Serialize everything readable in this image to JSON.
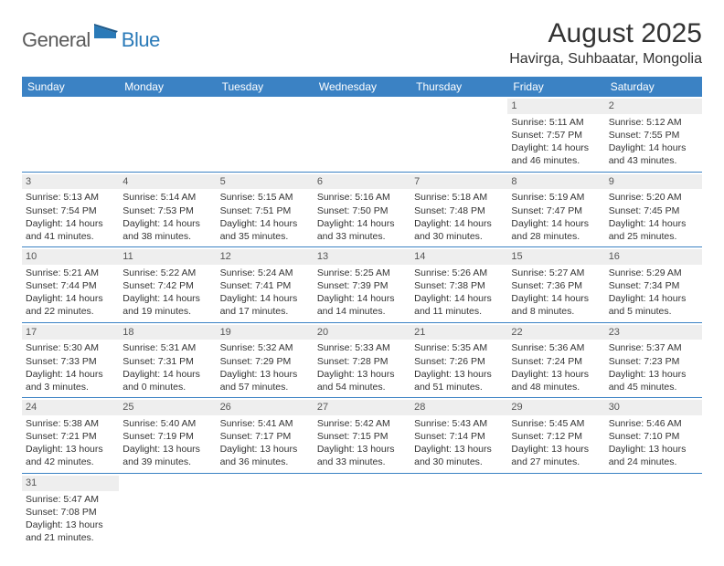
{
  "logo": {
    "general": "General",
    "blue": "Blue"
  },
  "title": "August 2025",
  "location": "Havirga, Suhbaatar, Mongolia",
  "colors": {
    "header_bg": "#3b82c4",
    "header_text": "#ffffff",
    "row_divider": "#3b82c4",
    "daynum_bg": "#eeeeee",
    "text": "#333333"
  },
  "day_names": [
    "Sunday",
    "Monday",
    "Tuesday",
    "Wednesday",
    "Thursday",
    "Friday",
    "Saturday"
  ],
  "weeks": [
    [
      null,
      null,
      null,
      null,
      null,
      {
        "n": "1",
        "sunrise": "5:11 AM",
        "sunset": "7:57 PM",
        "daylight": "14 hours and 46 minutes."
      },
      {
        "n": "2",
        "sunrise": "5:12 AM",
        "sunset": "7:55 PM",
        "daylight": "14 hours and 43 minutes."
      }
    ],
    [
      {
        "n": "3",
        "sunrise": "5:13 AM",
        "sunset": "7:54 PM",
        "daylight": "14 hours and 41 minutes."
      },
      {
        "n": "4",
        "sunrise": "5:14 AM",
        "sunset": "7:53 PM",
        "daylight": "14 hours and 38 minutes."
      },
      {
        "n": "5",
        "sunrise": "5:15 AM",
        "sunset": "7:51 PM",
        "daylight": "14 hours and 35 minutes."
      },
      {
        "n": "6",
        "sunrise": "5:16 AM",
        "sunset": "7:50 PM",
        "daylight": "14 hours and 33 minutes."
      },
      {
        "n": "7",
        "sunrise": "5:18 AM",
        "sunset": "7:48 PM",
        "daylight": "14 hours and 30 minutes."
      },
      {
        "n": "8",
        "sunrise": "5:19 AM",
        "sunset": "7:47 PM",
        "daylight": "14 hours and 28 minutes."
      },
      {
        "n": "9",
        "sunrise": "5:20 AM",
        "sunset": "7:45 PM",
        "daylight": "14 hours and 25 minutes."
      }
    ],
    [
      {
        "n": "10",
        "sunrise": "5:21 AM",
        "sunset": "7:44 PM",
        "daylight": "14 hours and 22 minutes."
      },
      {
        "n": "11",
        "sunrise": "5:22 AM",
        "sunset": "7:42 PM",
        "daylight": "14 hours and 19 minutes."
      },
      {
        "n": "12",
        "sunrise": "5:24 AM",
        "sunset": "7:41 PM",
        "daylight": "14 hours and 17 minutes."
      },
      {
        "n": "13",
        "sunrise": "5:25 AM",
        "sunset": "7:39 PM",
        "daylight": "14 hours and 14 minutes."
      },
      {
        "n": "14",
        "sunrise": "5:26 AM",
        "sunset": "7:38 PM",
        "daylight": "14 hours and 11 minutes."
      },
      {
        "n": "15",
        "sunrise": "5:27 AM",
        "sunset": "7:36 PM",
        "daylight": "14 hours and 8 minutes."
      },
      {
        "n": "16",
        "sunrise": "5:29 AM",
        "sunset": "7:34 PM",
        "daylight": "14 hours and 5 minutes."
      }
    ],
    [
      {
        "n": "17",
        "sunrise": "5:30 AM",
        "sunset": "7:33 PM",
        "daylight": "14 hours and 3 minutes."
      },
      {
        "n": "18",
        "sunrise": "5:31 AM",
        "sunset": "7:31 PM",
        "daylight": "14 hours and 0 minutes."
      },
      {
        "n": "19",
        "sunrise": "5:32 AM",
        "sunset": "7:29 PM",
        "daylight": "13 hours and 57 minutes."
      },
      {
        "n": "20",
        "sunrise": "5:33 AM",
        "sunset": "7:28 PM",
        "daylight": "13 hours and 54 minutes."
      },
      {
        "n": "21",
        "sunrise": "5:35 AM",
        "sunset": "7:26 PM",
        "daylight": "13 hours and 51 minutes."
      },
      {
        "n": "22",
        "sunrise": "5:36 AM",
        "sunset": "7:24 PM",
        "daylight": "13 hours and 48 minutes."
      },
      {
        "n": "23",
        "sunrise": "5:37 AM",
        "sunset": "7:23 PM",
        "daylight": "13 hours and 45 minutes."
      }
    ],
    [
      {
        "n": "24",
        "sunrise": "5:38 AM",
        "sunset": "7:21 PM",
        "daylight": "13 hours and 42 minutes."
      },
      {
        "n": "25",
        "sunrise": "5:40 AM",
        "sunset": "7:19 PM",
        "daylight": "13 hours and 39 minutes."
      },
      {
        "n": "26",
        "sunrise": "5:41 AM",
        "sunset": "7:17 PM",
        "daylight": "13 hours and 36 minutes."
      },
      {
        "n": "27",
        "sunrise": "5:42 AM",
        "sunset": "7:15 PM",
        "daylight": "13 hours and 33 minutes."
      },
      {
        "n": "28",
        "sunrise": "5:43 AM",
        "sunset": "7:14 PM",
        "daylight": "13 hours and 30 minutes."
      },
      {
        "n": "29",
        "sunrise": "5:45 AM",
        "sunset": "7:12 PM",
        "daylight": "13 hours and 27 minutes."
      },
      {
        "n": "30",
        "sunrise": "5:46 AM",
        "sunset": "7:10 PM",
        "daylight": "13 hours and 24 minutes."
      }
    ],
    [
      {
        "n": "31",
        "sunrise": "5:47 AM",
        "sunset": "7:08 PM",
        "daylight": "13 hours and 21 minutes."
      },
      null,
      null,
      null,
      null,
      null,
      null
    ]
  ],
  "labels": {
    "sunrise_prefix": "Sunrise: ",
    "sunset_prefix": "Sunset: ",
    "daylight_prefix": "Daylight: "
  }
}
